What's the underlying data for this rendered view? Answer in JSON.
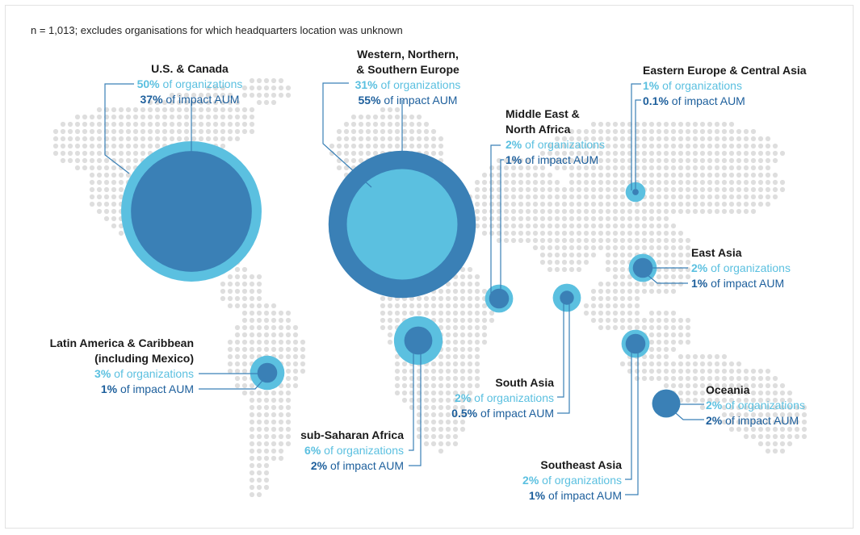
{
  "note": "n = 1,013; excludes organisations for which headquarters location was unknown",
  "colors": {
    "organizations": "#5bc0e0",
    "impact_aum": "#3a80b6",
    "dots": "#dedede",
    "lines": "#3a80b6"
  },
  "regions": [
    {
      "id": "us-canada",
      "title_lines": [
        "U.S. & Canada"
      ],
      "org_pct": "50%",
      "aum_pct": "37%",
      "org_value": 50,
      "aum_value": 37
    },
    {
      "id": "europe",
      "title_lines": [
        "Western, Northern,",
        "& Southern Europe"
      ],
      "org_pct": "31%",
      "aum_pct": "55%",
      "org_value": 31,
      "aum_value": 55
    },
    {
      "id": "mena",
      "title_lines": [
        "Middle East &",
        "North Africa"
      ],
      "org_pct": "2%",
      "aum_pct": "1%",
      "org_value": 2,
      "aum_value": 1
    },
    {
      "id": "eeca",
      "title_lines": [
        "Eastern Europe & Central Asia"
      ],
      "org_pct": "1%",
      "aum_pct": "0.1%",
      "org_value": 1,
      "aum_value": 0.1
    },
    {
      "id": "east-asia",
      "title_lines": [
        "East Asia"
      ],
      "org_pct": "2%",
      "aum_pct": "1%",
      "org_value": 2,
      "aum_value": 1
    },
    {
      "id": "latam",
      "title_lines": [
        "Latin America & Caribbean",
        "(including Mexico)"
      ],
      "org_pct": "3%",
      "aum_pct": "1%",
      "org_value": 3,
      "aum_value": 1
    },
    {
      "id": "south-asia",
      "title_lines": [
        "South Asia"
      ],
      "org_pct": "2%",
      "aum_pct": "0.5%",
      "org_value": 2,
      "aum_value": 0.5
    },
    {
      "id": "oceania",
      "title_lines": [
        "Oceania"
      ],
      "org_pct": "2%",
      "aum_pct": "2%",
      "org_value": 2,
      "aum_value": 2
    },
    {
      "id": "ssa",
      "title_lines": [
        "sub-Saharan Africa"
      ],
      "org_pct": "6%",
      "aum_pct": "2%",
      "org_value": 6,
      "aum_value": 2
    },
    {
      "id": "se-asia",
      "title_lines": [
        "Southeast Asia"
      ],
      "org_pct": "2%",
      "aum_pct": "1%",
      "org_value": 2,
      "aum_value": 1
    }
  ],
  "labels": {
    "org_suffix": " of organizations",
    "aum_suffix": " of impact AUM"
  }
}
